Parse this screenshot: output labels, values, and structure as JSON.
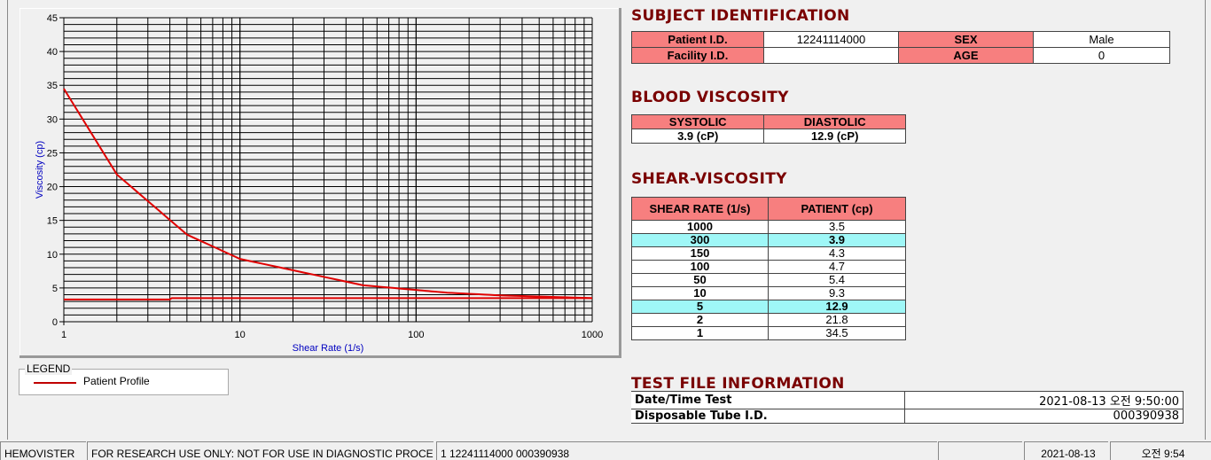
{
  "chart_data": {
    "type": "line",
    "xlabel": "Shear Rate (1/s)",
    "ylabel": "Viscosity (cp)",
    "xscale": "log",
    "xlim": [
      1,
      1000
    ],
    "ylim": [
      0,
      45
    ],
    "xticks": [
      "1",
      "10",
      "100",
      "1000"
    ],
    "yticks": [
      "0",
      "5",
      "10",
      "15",
      "20",
      "25",
      "30",
      "35",
      "40",
      "45"
    ],
    "grid": true,
    "series": [
      {
        "name": "Patient Profile",
        "color": "#e00000",
        "x": [
          1,
          2,
          5,
          10,
          50,
          100,
          150,
          300,
          1000
        ],
        "y": [
          34.5,
          21.8,
          12.9,
          9.3,
          5.4,
          4.7,
          4.3,
          3.9,
          3.5
        ]
      },
      {
        "color": "#e00000",
        "x": [
          1,
          4,
          4.1,
          1000
        ],
        "y": [
          3.3,
          3.3,
          3.5,
          3.5
        ]
      }
    ]
  },
  "legend": {
    "title": "LEGEND",
    "entry": "Patient Profile"
  },
  "subject": {
    "title": "SUBJECT IDENTIFICATION",
    "patient_id_label": "Patient I.D.",
    "patient_id": "12241114000",
    "sex_label": "SEX",
    "sex": "Male",
    "facility_label": "Facility I.D.",
    "facility": "",
    "age_label": "AGE",
    "age": "0"
  },
  "blood": {
    "title": "BLOOD VISCOSITY",
    "systolic_label": "SYSTOLIC",
    "diastolic_label": "DIASTOLIC",
    "systolic": "3.9 (cP)",
    "diastolic": "12.9 (cP)"
  },
  "shear": {
    "title": "SHEAR-VISCOSITY",
    "col1": "SHEAR RATE (1/s)",
    "col2": "PATIENT (cp)",
    "rows": [
      [
        "1000",
        "3.5"
      ],
      [
        "300",
        "3.9"
      ],
      [
        "150",
        "4.3"
      ],
      [
        "100",
        "4.7"
      ],
      [
        "50",
        "5.4"
      ],
      [
        "10",
        "9.3"
      ],
      [
        "5",
        "12.9"
      ],
      [
        "2",
        "21.8"
      ],
      [
        "1",
        "34.5"
      ]
    ],
    "highlight_color": "#9ff7f7"
  },
  "testfile": {
    "title": "TEST FILE INFORMATION",
    "date_label": "Date/Time Test",
    "date": "2021-08-13  오전 9:50:00",
    "tube_label": "Disposable Tube I.D.",
    "tube": "000390938"
  },
  "status": {
    "app": "HEMOVISTER",
    "notice": "FOR RESEARCH USE ONLY: NOT FOR USE IN DIAGNOSTIC PROCEDURES",
    "record": "1  12241114000  000390938",
    "blank": "",
    "date": "2021-08-13",
    "time": "오전 9:54"
  }
}
